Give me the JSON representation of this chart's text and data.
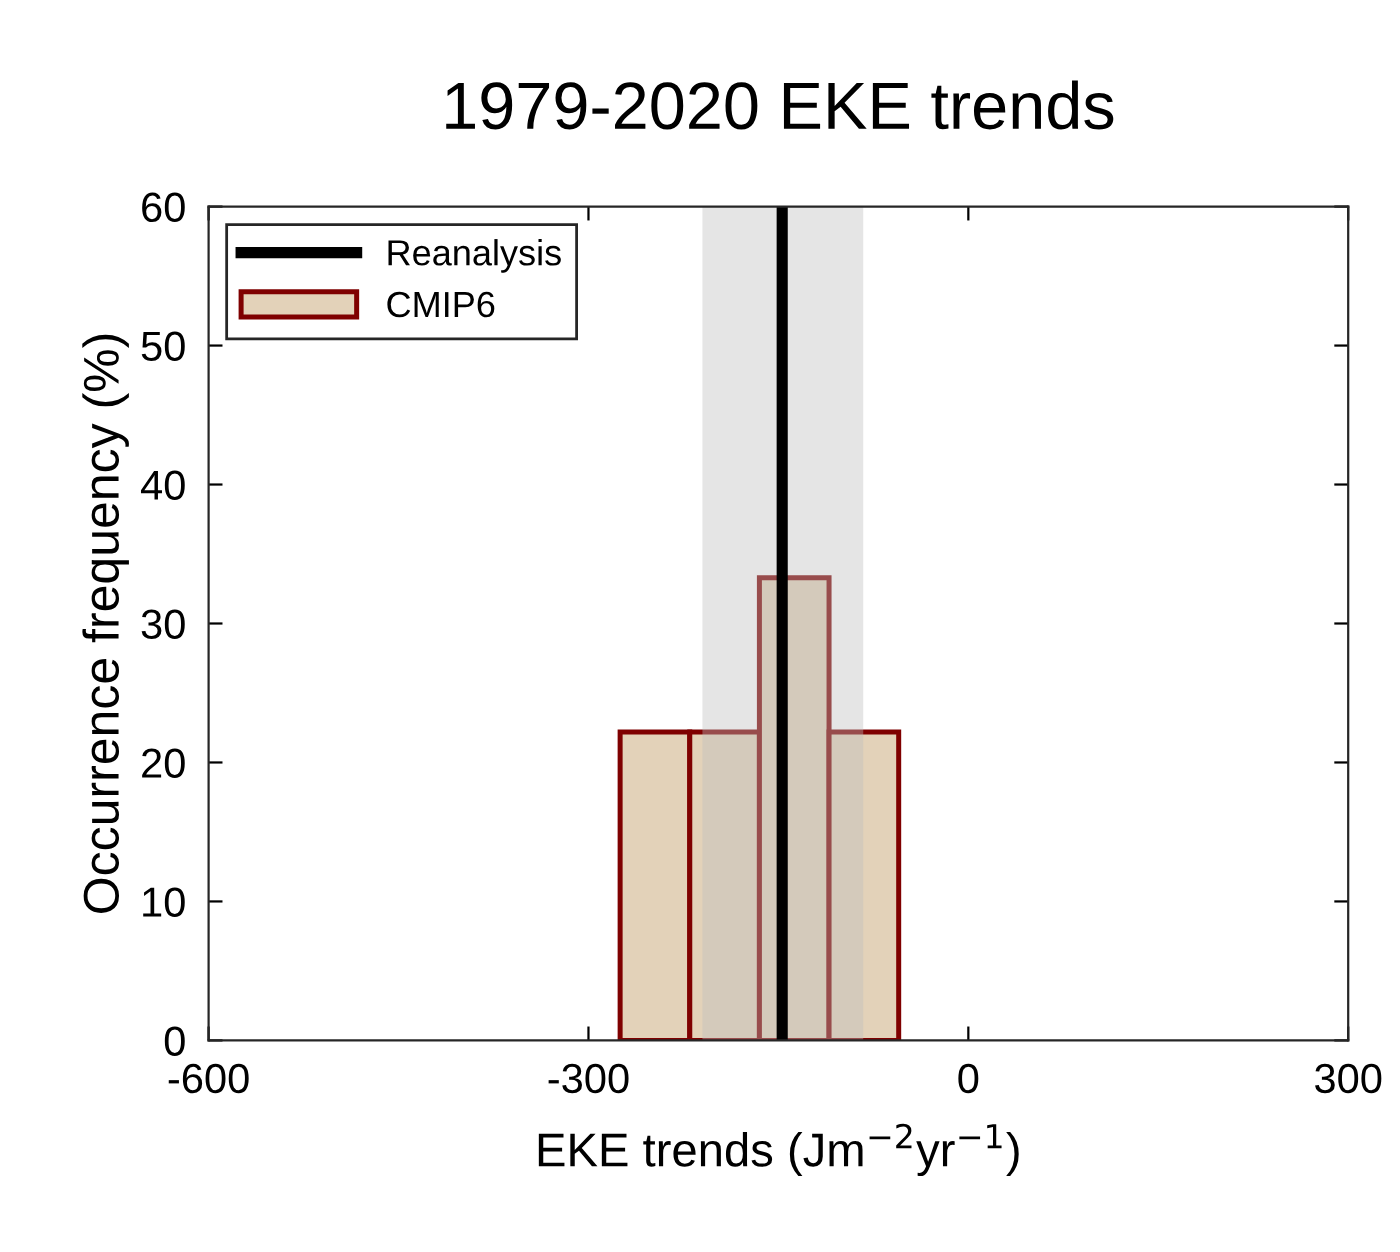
{
  "chart_data": {
    "type": "histogram",
    "title": "1979-2020 EKE trends",
    "xlabel": "EKE trends (Jm$^{−2}$yr$^{−1}$)",
    "ylabel": "Occurrence frequency (%)",
    "bins": [
      -275,
      -220,
      -165,
      -110,
      -55
    ],
    "series": [
      {
        "name": "CMIP6",
        "color": "#e3d2b9",
        "values": [
          22.2,
          22.2,
          33.3,
          22.2
        ]
      }
    ],
    "ref_lines": [
      {
        "axis": "x",
        "value": -147,
        "label": "Reanalysis",
        "color": "#000000"
      }
    ],
    "bands": [
      {
        "axis": "x",
        "from": -210,
        "to": -83,
        "color": "#bfbfbf"
      }
    ],
    "xlim": [
      -600,
      300
    ],
    "xticks": [
      -600,
      -300,
      0,
      300
    ],
    "ylim": [
      0,
      60
    ],
    "yticks": [
      0,
      10,
      20,
      30,
      40,
      50,
      60
    ],
    "grid": false,
    "legend": "top left"
  }
}
